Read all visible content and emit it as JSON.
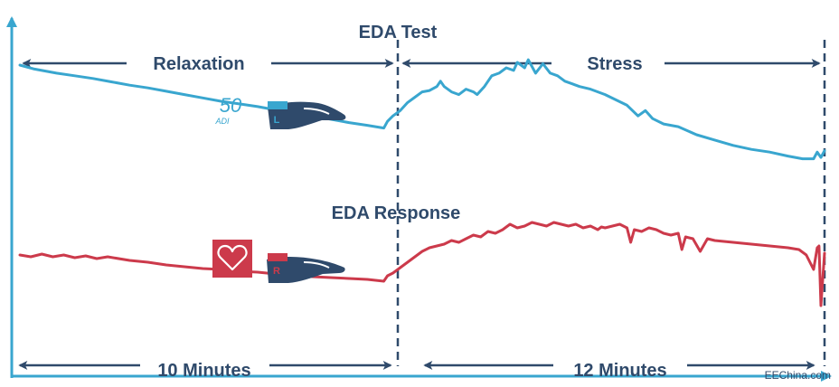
{
  "chart_data": {
    "type": "line",
    "title": "EDA Test",
    "subtitle": "EDA Response",
    "phases": [
      {
        "label": "Relaxation"
      },
      {
        "label": "Stress"
      }
    ],
    "durations": [
      {
        "label": "10 Minutes"
      },
      {
        "label": "12 Minutes"
      }
    ],
    "annotations": {
      "adi_value": "50",
      "adi_unit": "ADI",
      "left_hand_badge": "L",
      "right_hand_badge": "R",
      "watermark": "EEChina.com"
    },
    "x_range": [
      0,
      22
    ],
    "x_unit": "minutes",
    "phase_boundary": 10,
    "series": [
      {
        "color": "#39a6cf",
        "x": [
          0,
          0.4,
          1,
          1.5,
          2,
          2.5,
          3,
          3.5,
          4,
          4.5,
          5,
          5.5,
          6,
          6.5,
          7,
          7.5,
          8,
          8.5,
          9,
          9.5,
          9.95,
          10.05,
          10.2,
          10.4,
          10.6,
          10.8,
          11.0,
          11.2,
          11.4,
          11.5,
          11.6,
          11.8,
          12.0,
          12.2,
          12.4,
          12.5,
          12.7,
          12.9,
          13.1,
          13.3,
          13.5,
          13.6,
          13.8,
          13.9,
          14.1,
          14.3,
          14.5,
          14.7,
          14.9,
          15.1,
          15.3,
          15.6,
          16.0,
          16.3,
          16.6,
          16.9,
          17.1,
          17.3,
          17.6,
          18.0,
          18.5,
          19.0,
          19.5,
          20.0,
          20.5,
          21.0,
          21.4,
          21.7,
          21.8,
          21.9,
          22.0
        ],
        "y": [
          100,
          97,
          94,
          92,
          90,
          87.5,
          85,
          83,
          80.5,
          78,
          75.5,
          73,
          71,
          69,
          66.5,
          64,
          62,
          59.5,
          57,
          55,
          53,
          58,
          62,
          66,
          72,
          76,
          80,
          81,
          84,
          88,
          84,
          80,
          78,
          82,
          80,
          78,
          84,
          92,
          94,
          98,
          96,
          102,
          98,
          104,
          94,
          101,
          94,
          92,
          88,
          86,
          84,
          82,
          78,
          74,
          70,
          62,
          66,
          60,
          56,
          54,
          48,
          44,
          40,
          37,
          35,
          32,
          30,
          30,
          35,
          31,
          36
        ]
      },
      {
        "color": "#cc3a4b",
        "x": [
          0,
          0.3,
          0.6,
          0.9,
          1.2,
          1.5,
          1.8,
          2.1,
          2.4,
          3,
          3.5,
          4,
          4.5,
          5,
          5.5,
          6,
          6.5,
          7,
          7.5,
          8,
          8.5,
          9,
          9.5,
          9.95,
          10.05,
          10.2,
          10.4,
          10.6,
          10.8,
          11.0,
          11.2,
          11.4,
          11.6,
          11.8,
          12.0,
          12.2,
          12.4,
          12.6,
          12.8,
          13.0,
          13.2,
          13.4,
          13.6,
          13.8,
          14.0,
          14.2,
          14.4,
          14.6,
          14.8,
          15.0,
          15.2,
          15.4,
          15.6,
          15.8,
          15.9,
          16.0,
          16.2,
          16.4,
          16.6,
          16.7,
          16.8,
          17.0,
          17.2,
          17.4,
          17.6,
          17.8,
          18.0,
          18.1,
          18.2,
          18.4,
          18.6,
          18.8,
          19.0,
          19.5,
          20.0,
          20.5,
          21.0,
          21.3,
          21.5,
          21.7,
          21.8,
          21.85,
          21.9,
          22.0
        ],
        "y": [
          56,
          54,
          57,
          54,
          56,
          53,
          55,
          52,
          54,
          50,
          48,
          45,
          43,
          41,
          40,
          38,
          37,
          35,
          34,
          32,
          31,
          30,
          29,
          27,
          33,
          36,
          42,
          48,
          54,
          60,
          64,
          66,
          68,
          72,
          70,
          74,
          78,
          76,
          82,
          80,
          84,
          90,
          86,
          88,
          92,
          90,
          88,
          92,
          90,
          88,
          90,
          86,
          88,
          84,
          87,
          86,
          88,
          90,
          86,
          70,
          84,
          82,
          86,
          84,
          80,
          78,
          80,
          62,
          76,
          74,
          60,
          74,
          72,
          70,
          68,
          66,
          64,
          62,
          56,
          40,
          64,
          66,
          0,
          58
        ]
      }
    ]
  }
}
